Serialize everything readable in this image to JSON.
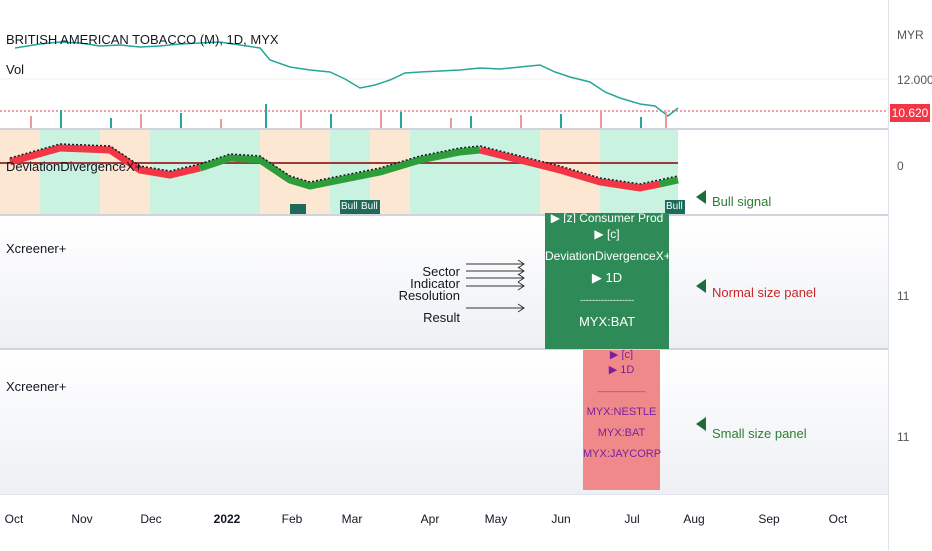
{
  "header": {
    "title": "BRITISH AMERICAN TOBACCO (M), 1D, MYX",
    "vol_label": "Vol",
    "indicator_label": "DeviationDivergenceX+"
  },
  "price_axis": {
    "currency": "MYR",
    "level_12": "12.000",
    "last_price": "10.620",
    "zero": "0",
    "panel1_value": "11",
    "panel2_value": "11"
  },
  "panes": {
    "screener1_label": "Xcreener+",
    "screener2_label": "Xcreener+"
  },
  "signals": {
    "bull_tags": [
      "Bull",
      "Bull",
      "Bull"
    ]
  },
  "panel_big": {
    "line1": "▶ [z] Consumer Prod",
    "line2": "▶ [c] DeviationDivergenceX+",
    "line3": "▶ 1D",
    "divider": "------------------",
    "result": "MYX:BAT"
  },
  "panel_small": {
    "line1": "▶ [c] Deviation+",
    "line2": "▶ 1D",
    "divider": "------------------",
    "results": [
      "MYX:NESTLE",
      "MYX:BAT",
      "MYX:JAYCORP"
    ]
  },
  "arrow_labels": [
    "Sector",
    "Indicator",
    "Resolution",
    "Result"
  ],
  "annotations": {
    "bull_signal": "Bull signal",
    "normal_panel": "Normal size panel",
    "small_panel": "Small size panel"
  },
  "colors": {
    "bull_green": "#1e7b34",
    "bear_red": "#f23645",
    "panel_green": "#2e8b57",
    "panel_pink": "#f08a8a",
    "note_red": "#c62828",
    "note_green": "#2e7d32"
  },
  "time_axis": [
    "Oct",
    "Nov",
    "Dec",
    "2022",
    "Feb",
    "Mar",
    "Apr",
    "May",
    "Jun",
    "Jul",
    "Aug",
    "Sep",
    "Oct"
  ]
}
